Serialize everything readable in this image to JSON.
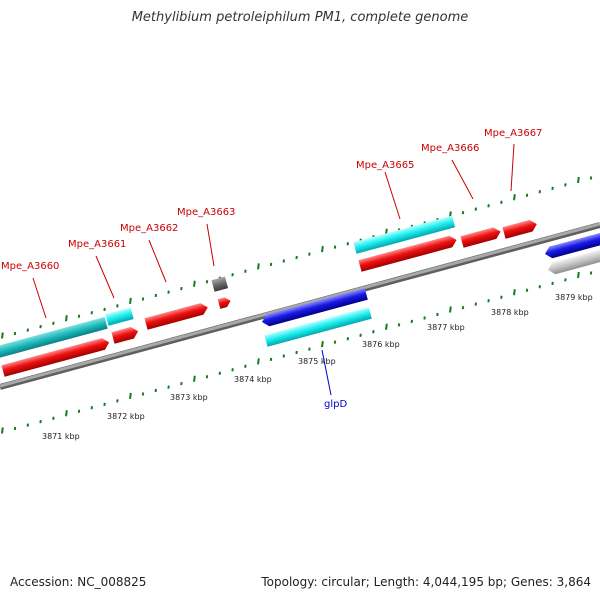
{
  "title": "Methylibium petroleiphilum PM1, complete genome",
  "footer": {
    "accession": "Accession: NC_008825",
    "summary": "Topology: circular; Length: 4,044,195 bp; Genes: 3,864"
  },
  "colors": {
    "tick": "#1a7a1a",
    "backbone": "#808080",
    "gene_label_forward": "#cc0000",
    "gene_label_other": "#0000cc"
  },
  "kbp_labels": [
    "3871 kbp",
    "3872 kbp",
    "3873 kbp",
    "3874 kbp",
    "3875 kbp",
    "3876 kbp",
    "3877 kbp",
    "3878 kbp",
    "3879 kbp"
  ],
  "gene_labels": [
    "Mpe_A3660",
    "Mpe_A3661",
    "Mpe_A3662",
    "Mpe_A3663",
    "Mpe_A3665",
    "Mpe_A3666",
    "Mpe_A3667",
    "glpD"
  ]
}
